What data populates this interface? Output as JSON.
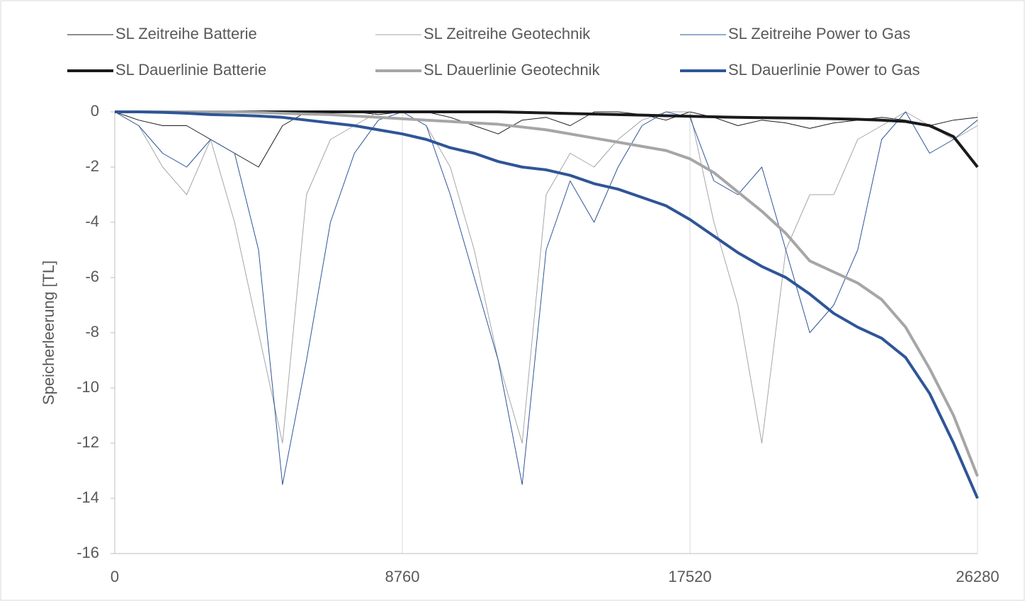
{
  "chart_data": {
    "type": "line",
    "y_label": "Speicherleerung [TL]",
    "x": [
      0,
      730,
      1460,
      2190,
      2920,
      3650,
      4380,
      5110,
      5840,
      6570,
      7300,
      8030,
      8760,
      9490,
      10220,
      10950,
      11680,
      12410,
      13140,
      13870,
      14600,
      15330,
      16060,
      16790,
      17520,
      18250,
      18980,
      19710,
      20440,
      21170,
      21900,
      22630,
      23360,
      24090,
      24820,
      25550,
      26280
    ],
    "xlim": [
      0,
      26280
    ],
    "xticks": [
      0,
      8760,
      17520,
      26280
    ],
    "ylim": [
      -16,
      0
    ],
    "yticks": [
      0,
      -2,
      -4,
      -6,
      -8,
      -10,
      -12,
      -14,
      -16
    ],
    "grid": "x",
    "series": [
      {
        "name": "SL Zeitreihe Batterie",
        "color": "#1a1a1a",
        "width": 1,
        "values": [
          0,
          -0.3,
          -0.5,
          -0.5,
          -1,
          -1.5,
          -2,
          -0.5,
          0,
          0,
          0,
          -0.1,
          0,
          0,
          -0.2,
          -0.5,
          -0.8,
          -0.3,
          -0.2,
          -0.5,
          0,
          0,
          -0.1,
          -0.3,
          0,
          -0.2,
          -0.5,
          -0.3,
          -0.4,
          -0.6,
          -0.4,
          -0.3,
          -0.2,
          -0.3,
          -0.5,
          -0.3,
          -0.2
        ]
      },
      {
        "name": "SL Zeitreihe Geotechnik",
        "color": "#a6a6a6",
        "width": 1,
        "values": [
          0,
          -0.5,
          -2,
          -3,
          -1,
          -4,
          -8,
          -12,
          -3,
          -1,
          -0.5,
          0,
          0,
          -0.5,
          -2,
          -5,
          -9,
          -12,
          -3,
          -1.5,
          -2,
          -1,
          -0.3,
          0,
          0,
          -4,
          -7,
          -12,
          -5,
          -3,
          -3,
          -1,
          -0.5,
          0,
          -0.5,
          -1,
          -0.5
        ]
      },
      {
        "name": "SL Zeitreihe Power to Gas",
        "color": "#2f5597",
        "width": 1,
        "values": [
          0,
          -0.5,
          -1.5,
          -2,
          -1,
          -1.5,
          -5,
          -13.5,
          -9,
          -4,
          -1.5,
          -0.3,
          0,
          -0.5,
          -3,
          -6,
          -9,
          -13.5,
          -5,
          -2.5,
          -4,
          -2,
          -0.5,
          0,
          -0.2,
          -2.5,
          -3,
          -2,
          -5,
          -8,
          -7,
          -5,
          -1,
          0,
          -1.5,
          -1,
          -0.3
        ]
      },
      {
        "name": "SL Dauerlinie Batterie",
        "color": "#1a1a1a",
        "width": 4,
        "values": [
          0,
          0,
          0,
          0,
          0,
          0,
          0,
          0,
          0,
          0,
          0,
          0,
          0,
          0,
          0,
          0,
          0,
          -0.02,
          -0.04,
          -0.06,
          -0.08,
          -0.1,
          -0.12,
          -0.14,
          -0.16,
          -0.18,
          -0.2,
          -0.21,
          -0.22,
          -0.23,
          -0.25,
          -0.27,
          -0.3,
          -0.35,
          -0.5,
          -0.9,
          -2
        ]
      },
      {
        "name": "SL Dauerlinie Geotechnik",
        "color": "#a6a6a6",
        "width": 4,
        "values": [
          0,
          0,
          0,
          0,
          0,
          0,
          -0.02,
          -0.05,
          -0.08,
          -0.1,
          -0.15,
          -0.2,
          -0.25,
          -0.3,
          -0.35,
          -0.4,
          -0.45,
          -0.55,
          -0.65,
          -0.8,
          -0.95,
          -1.1,
          -1.25,
          -1.4,
          -1.7,
          -2.2,
          -2.9,
          -3.6,
          -4.4,
          -5.4,
          -5.8,
          -6.2,
          -6.8,
          -7.8,
          -9.3,
          -11,
          -13.2
        ]
      },
      {
        "name": "SL Dauerlinie Power to Gas",
        "color": "#2f5597",
        "width": 4,
        "values": [
          0,
          0,
          -0.02,
          -0.05,
          -0.1,
          -0.12,
          -0.15,
          -0.2,
          -0.3,
          -0.4,
          -0.5,
          -0.65,
          -0.8,
          -1.0,
          -1.3,
          -1.5,
          -1.8,
          -2.0,
          -2.1,
          -2.3,
          -2.6,
          -2.8,
          -3.1,
          -3.4,
          -3.9,
          -4.5,
          -5.1,
          -5.6,
          -6.0,
          -6.6,
          -7.3,
          -7.8,
          -8.2,
          -8.9,
          -10.2,
          -12,
          -14
        ]
      }
    ]
  }
}
